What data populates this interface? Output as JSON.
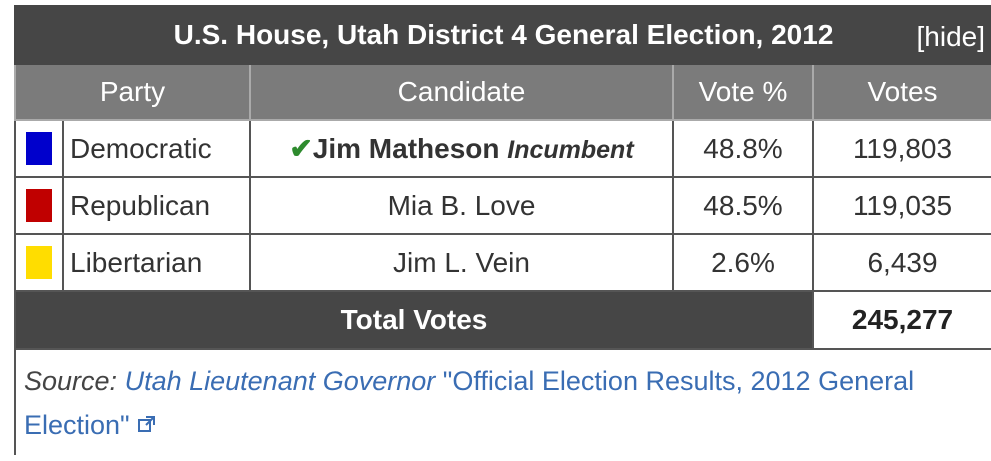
{
  "header": {
    "title": "U.S. House, Utah District 4 General Election, 2012",
    "toggle": "[hide]"
  },
  "table": {
    "columns": [
      "Party",
      "Candidate",
      "Vote %",
      "Votes"
    ],
    "rows": [
      {
        "color": "#0000cc",
        "party": "Democratic",
        "candidate": "Jim Matheson",
        "note": "Incumbent",
        "vote_pct": "48.8%",
        "votes": "119,803"
      },
      {
        "color": "#c00000",
        "party": "Republican",
        "candidate": "Mia B. Love",
        "vote_pct": "48.5%",
        "votes": "119,035"
      },
      {
        "color": "#ffdd00",
        "party": "Libertarian",
        "candidate": "Jim L. Vein",
        "vote_pct": "2.6%",
        "votes": "6,439"
      }
    ]
  },
  "total": {
    "label": "Total Votes",
    "votes": "245,277"
  },
  "source": {
    "prefix": "Source:",
    "link": "Utah Lieutenant Governor",
    "text": "\"Official Election Results, 2012 General Election\""
  }
}
